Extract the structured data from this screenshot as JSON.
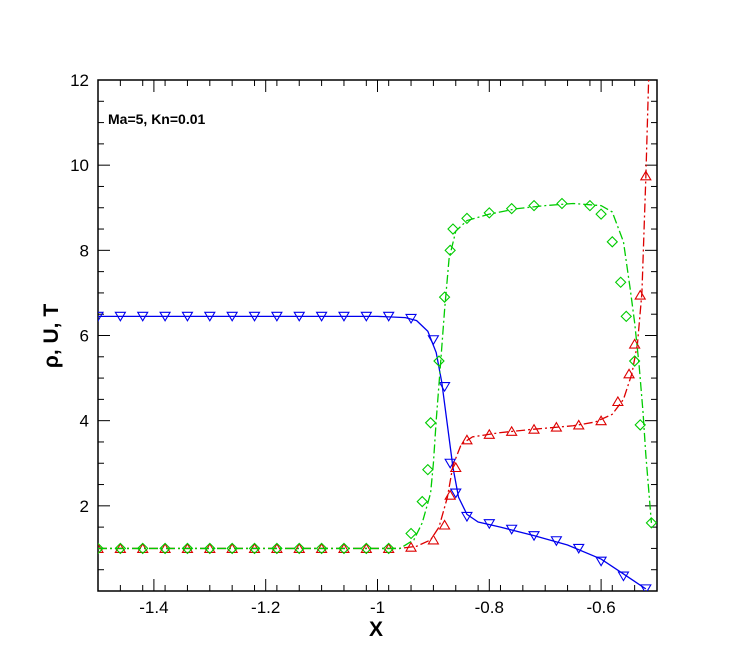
{
  "chart_data": {
    "type": "line",
    "annotation": "Ma=5, Kn=0.01",
    "xlabel": "X",
    "ylabel": "ρ, U, T",
    "xlim": [
      -1.5,
      -0.5
    ],
    "ylim": [
      0,
      12
    ],
    "x_ticks": [
      -1.4,
      -1.2,
      -1,
      -0.8,
      -0.6
    ],
    "x_tick_labels": [
      "-1.4",
      "-1.2",
      "-1",
      "-0.8",
      "-0.6"
    ],
    "y_ticks": [
      2,
      4,
      6,
      8,
      10,
      12
    ],
    "y_tick_labels": [
      "2",
      "4",
      "6",
      "8",
      "10",
      "12"
    ],
    "grid": false,
    "legend": "none",
    "series": [
      {
        "color": "#0000ee",
        "line": "solid",
        "marker": "triangle-down",
        "line_points": [
          [
            -1.5,
            6.45
          ],
          [
            -1.0,
            6.45
          ],
          [
            -0.95,
            6.42
          ],
          [
            -0.93,
            6.35
          ],
          [
            -0.91,
            6.1
          ],
          [
            -0.895,
            5.6
          ],
          [
            -0.885,
            4.9
          ],
          [
            -0.875,
            3.9
          ],
          [
            -0.865,
            2.9
          ],
          [
            -0.855,
            2.2
          ],
          [
            -0.84,
            1.8
          ],
          [
            -0.82,
            1.62
          ],
          [
            -0.78,
            1.5
          ],
          [
            -0.72,
            1.3
          ],
          [
            -0.66,
            1.08
          ],
          [
            -0.6,
            0.75
          ],
          [
            -0.56,
            0.4
          ],
          [
            -0.52,
            0.05
          ]
        ],
        "markers": [
          [
            -1.5,
            6.45
          ],
          [
            -1.46,
            6.45
          ],
          [
            -1.42,
            6.45
          ],
          [
            -1.38,
            6.45
          ],
          [
            -1.34,
            6.45
          ],
          [
            -1.3,
            6.45
          ],
          [
            -1.26,
            6.45
          ],
          [
            -1.22,
            6.45
          ],
          [
            -1.18,
            6.45
          ],
          [
            -1.14,
            6.45
          ],
          [
            -1.1,
            6.45
          ],
          [
            -1.06,
            6.45
          ],
          [
            -1.02,
            6.45
          ],
          [
            -0.98,
            6.45
          ],
          [
            -0.94,
            6.4
          ],
          [
            -0.9,
            5.9
          ],
          [
            -0.88,
            4.8
          ],
          [
            -0.87,
            3.0
          ],
          [
            -0.86,
            2.3
          ],
          [
            -0.84,
            1.75
          ],
          [
            -0.8,
            1.58
          ],
          [
            -0.76,
            1.45
          ],
          [
            -0.72,
            1.3
          ],
          [
            -0.68,
            1.18
          ],
          [
            -0.64,
            1.0
          ],
          [
            -0.6,
            0.7
          ],
          [
            -0.56,
            0.35
          ],
          [
            -0.52,
            0.05
          ]
        ]
      },
      {
        "color": "#dd0000",
        "line": "dash-dot",
        "marker": "triangle-up",
        "line_points": [
          [
            -1.5,
            1.0
          ],
          [
            -0.96,
            1.0
          ],
          [
            -0.93,
            1.05
          ],
          [
            -0.905,
            1.2
          ],
          [
            -0.89,
            1.5
          ],
          [
            -0.875,
            2.2
          ],
          [
            -0.865,
            2.95
          ],
          [
            -0.85,
            3.45
          ],
          [
            -0.83,
            3.62
          ],
          [
            -0.78,
            3.72
          ],
          [
            -0.72,
            3.8
          ],
          [
            -0.65,
            3.88
          ],
          [
            -0.61,
            3.97
          ],
          [
            -0.58,
            4.15
          ],
          [
            -0.56,
            4.5
          ],
          [
            -0.545,
            5.1
          ],
          [
            -0.535,
            5.8
          ],
          [
            -0.527,
            7.0
          ],
          [
            -0.52,
            9.7
          ],
          [
            -0.515,
            12.0
          ]
        ],
        "markers": [
          [
            -1.5,
            1.0
          ],
          [
            -1.46,
            1.0
          ],
          [
            -1.42,
            1.0
          ],
          [
            -1.38,
            1.0
          ],
          [
            -1.34,
            1.0
          ],
          [
            -1.3,
            1.0
          ],
          [
            -1.26,
            1.0
          ],
          [
            -1.22,
            1.0
          ],
          [
            -1.18,
            1.0
          ],
          [
            -1.14,
            1.0
          ],
          [
            -1.1,
            1.0
          ],
          [
            -1.06,
            1.0
          ],
          [
            -1.02,
            1.0
          ],
          [
            -0.98,
            1.0
          ],
          [
            -0.94,
            1.03
          ],
          [
            -0.9,
            1.2
          ],
          [
            -0.88,
            1.55
          ],
          [
            -0.87,
            2.25
          ],
          [
            -0.86,
            2.9
          ],
          [
            -0.84,
            3.55
          ],
          [
            -0.8,
            3.68
          ],
          [
            -0.76,
            3.75
          ],
          [
            -0.72,
            3.8
          ],
          [
            -0.68,
            3.85
          ],
          [
            -0.64,
            3.9
          ],
          [
            -0.6,
            4.0
          ],
          [
            -0.57,
            4.45
          ],
          [
            -0.55,
            5.1
          ],
          [
            -0.54,
            5.8
          ],
          [
            -0.53,
            6.95
          ],
          [
            -0.52,
            9.75
          ]
        ]
      },
      {
        "color": "#00cc00",
        "line": "dash-dot",
        "marker": "diamond",
        "line_points": [
          [
            -1.5,
            1.0
          ],
          [
            -0.96,
            1.0
          ],
          [
            -0.935,
            1.2
          ],
          [
            -0.92,
            1.6
          ],
          [
            -0.905,
            2.3
          ],
          [
            -0.9,
            3.0
          ],
          [
            -0.895,
            4.0
          ],
          [
            -0.888,
            5.2
          ],
          [
            -0.88,
            6.6
          ],
          [
            -0.872,
            7.8
          ],
          [
            -0.86,
            8.45
          ],
          [
            -0.84,
            8.7
          ],
          [
            -0.8,
            8.85
          ],
          [
            -0.75,
            8.98
          ],
          [
            -0.7,
            9.05
          ],
          [
            -0.65,
            9.1
          ],
          [
            -0.6,
            9.05
          ],
          [
            -0.58,
            8.9
          ],
          [
            -0.56,
            8.2
          ],
          [
            -0.548,
            7.1
          ],
          [
            -0.54,
            6.3
          ],
          [
            -0.532,
            5.3
          ],
          [
            -0.525,
            4.2
          ],
          [
            -0.52,
            3.2
          ],
          [
            -0.51,
            1.6
          ]
        ],
        "markers": [
          [
            -1.5,
            1.0
          ],
          [
            -1.46,
            1.0
          ],
          [
            -1.42,
            1.0
          ],
          [
            -1.38,
            1.0
          ],
          [
            -1.34,
            1.0
          ],
          [
            -1.3,
            1.0
          ],
          [
            -1.26,
            1.0
          ],
          [
            -1.22,
            1.0
          ],
          [
            -1.18,
            1.0
          ],
          [
            -1.14,
            1.0
          ],
          [
            -1.1,
            1.0
          ],
          [
            -1.06,
            1.0
          ],
          [
            -1.02,
            1.0
          ],
          [
            -0.98,
            1.0
          ],
          [
            -0.94,
            1.35
          ],
          [
            -0.92,
            2.1
          ],
          [
            -0.91,
            2.85
          ],
          [
            -0.905,
            3.95
          ],
          [
            -0.89,
            5.4
          ],
          [
            -0.88,
            6.9
          ],
          [
            -0.87,
            8.0
          ],
          [
            -0.865,
            8.5
          ],
          [
            -0.84,
            8.75
          ],
          [
            -0.8,
            8.88
          ],
          [
            -0.76,
            8.98
          ],
          [
            -0.72,
            9.05
          ],
          [
            -0.67,
            9.1
          ],
          [
            -0.62,
            9.05
          ],
          [
            -0.6,
            8.85
          ],
          [
            -0.58,
            8.2
          ],
          [
            -0.565,
            7.25
          ],
          [
            -0.555,
            6.45
          ],
          [
            -0.54,
            5.4
          ],
          [
            -0.53,
            3.9
          ],
          [
            -0.51,
            1.6
          ]
        ]
      }
    ]
  }
}
